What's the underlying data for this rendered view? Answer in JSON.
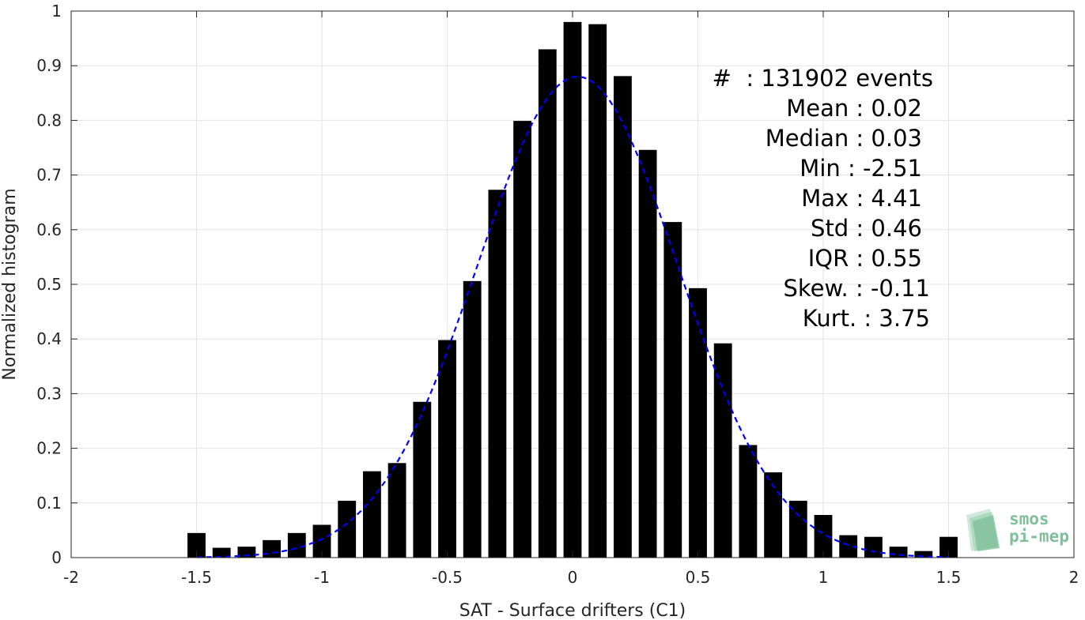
{
  "chart_data": {
    "type": "bar",
    "xlabel": "SAT - Surface drifters (C1)",
    "ylabel": "Normalized histogram",
    "xlim": [
      -2,
      2
    ],
    "ylim": [
      0,
      1
    ],
    "grid": true,
    "x_ticks": [
      "-2",
      "-1.5",
      "-1",
      "-0.5",
      "0",
      "0.5",
      "1",
      "1.5",
      "2"
    ],
    "y_ticks": [
      "0",
      "0.1",
      "0.2",
      "0.3",
      "0.4",
      "0.5",
      "0.6",
      "0.7",
      "0.8",
      "0.9",
      "1"
    ],
    "bars": {
      "x": [
        -1.5,
        -1.4,
        -1.3,
        -1.2,
        -1.1,
        -1.0,
        -0.9,
        -0.8,
        -0.7,
        -0.6,
        -0.5,
        -0.4,
        -0.3,
        -0.2,
        -0.1,
        0.0,
        0.1,
        0.2,
        0.3,
        0.4,
        0.5,
        0.6,
        0.7,
        0.8,
        0.9,
        1.0,
        1.1,
        1.2,
        1.3,
        1.4,
        1.5
      ],
      "values": [
        0.045,
        0.018,
        0.02,
        0.032,
        0.045,
        0.06,
        0.104,
        0.158,
        0.173,
        0.285,
        0.398,
        0.506,
        0.673,
        0.799,
        0.93,
        0.98,
        0.976,
        0.881,
        0.746,
        0.614,
        0.493,
        0.392,
        0.206,
        0.156,
        0.104,
        0.078,
        0.041,
        0.038,
        0.02,
        0.012,
        0.038
      ],
      "color": "#000000"
    },
    "fit": {
      "type": "gaussian",
      "mean": 0.02,
      "peak": 0.88,
      "sigma": 0.4,
      "x_range": [
        -1.5,
        1.5
      ],
      "color": "#0000ff",
      "style": "dashed"
    }
  },
  "stats": [
    "#  : 131902 events",
    "Mean : 0.02",
    "Median : 0.03",
    "Min : -2.51",
    "Max : 4.41",
    "Std : 0.46",
    "IQR : 0.55",
    "Skew. : -0.11",
    "Kurt. : 3.75"
  ],
  "logo": {
    "line1": "smos",
    "line2": "pi-mep",
    "color": "#7fbf99"
  }
}
